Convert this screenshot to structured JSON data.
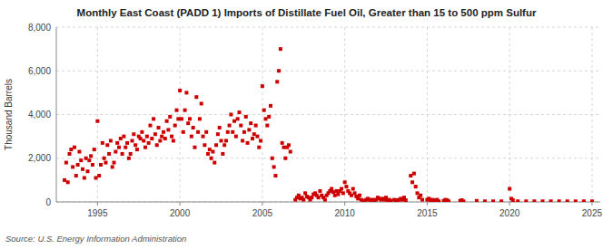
{
  "chart_data": {
    "type": "scatter",
    "title": "Monthly East Coast (PADD 1) Imports of Distillate Fuel Oil, Greater than 15 to 500 ppm Sulfur",
    "ylabel": "Thousand Barrels",
    "annotations": [
      "Source: U.S. Energy Information Administration"
    ],
    "color": "#cc0000",
    "marker": "square",
    "grid": true,
    "xlim": [
      1992.5,
      2025.5
    ],
    "ylim": [
      0,
      8000
    ],
    "xticks": [
      1995,
      2000,
      2005,
      2010,
      2015,
      2020,
      2025
    ],
    "yticks": [
      0,
      {
        "value": 2000,
        "label": "2,000"
      },
      {
        "value": 4000,
        "label": "4,000"
      },
      {
        "value": 6000,
        "label": "6,000"
      },
      {
        "value": 8000,
        "label": "8,000"
      }
    ],
    "x": [
      1993.0,
      1993.1,
      1993.2,
      1993.3,
      1993.4,
      1993.5,
      1993.6,
      1993.7,
      1993.8,
      1993.9,
      1994.0,
      1994.1,
      1994.2,
      1994.3,
      1994.4,
      1994.5,
      1994.6,
      1994.7,
      1994.8,
      1994.9,
      1995.0,
      1995.1,
      1995.2,
      1995.3,
      1995.4,
      1995.5,
      1995.6,
      1995.7,
      1995.8,
      1995.9,
      1996.0,
      1996.1,
      1996.2,
      1996.3,
      1996.4,
      1996.5,
      1996.6,
      1996.7,
      1996.8,
      1996.9,
      1997.0,
      1997.1,
      1997.2,
      1997.3,
      1997.4,
      1997.5,
      1997.6,
      1997.7,
      1997.8,
      1997.9,
      1998.0,
      1998.1,
      1998.2,
      1998.3,
      1998.4,
      1998.5,
      1998.6,
      1998.7,
      1998.8,
      1998.9,
      1999.0,
      1999.1,
      1999.2,
      1999.3,
      1999.4,
      1999.5,
      1999.6,
      1999.7,
      1999.8,
      1999.9,
      2000.0,
      2000.1,
      2000.2,
      2000.3,
      2000.4,
      2000.5,
      2000.6,
      2000.7,
      2000.8,
      2000.9,
      2001.0,
      2001.1,
      2001.2,
      2001.3,
      2001.4,
      2001.5,
      2001.6,
      2001.7,
      2001.8,
      2001.9,
      2002.0,
      2002.1,
      2002.2,
      2002.3,
      2002.4,
      2002.5,
      2002.6,
      2002.7,
      2002.8,
      2002.9,
      2003.0,
      2003.1,
      2003.2,
      2003.3,
      2003.4,
      2003.5,
      2003.6,
      2003.7,
      2003.8,
      2003.9,
      2004.0,
      2004.1,
      2004.2,
      2004.3,
      2004.4,
      2004.5,
      2004.6,
      2004.7,
      2004.8,
      2004.9,
      2005.0,
      2005.1,
      2005.2,
      2005.3,
      2005.4,
      2005.5,
      2005.6,
      2005.7,
      2005.8,
      2005.9,
      2006.0,
      2006.1,
      2006.2,
      2006.3,
      2006.4,
      2006.5,
      2006.6,
      2006.7,
      2007.0,
      2007.1,
      2007.2,
      2007.3,
      2007.4,
      2007.5,
      2007.6,
      2007.7,
      2007.8,
      2007.9,
      2008.0,
      2008.1,
      2008.2,
      2008.3,
      2008.4,
      2008.5,
      2008.6,
      2008.7,
      2008.8,
      2008.9,
      2009.0,
      2009.1,
      2009.2,
      2009.3,
      2009.4,
      2009.5,
      2009.6,
      2009.7,
      2009.8,
      2009.9,
      2010.0,
      2010.1,
      2010.2,
      2010.3,
      2010.4,
      2010.5,
      2010.6,
      2010.7,
      2010.8,
      2010.9,
      2011.0,
      2011.1,
      2011.2,
      2011.3,
      2011.4,
      2011.5,
      2011.6,
      2011.7,
      2011.8,
      2011.9,
      2012.0,
      2012.1,
      2012.2,
      2012.3,
      2012.4,
      2012.5,
      2012.6,
      2012.7,
      2012.8,
      2013.0,
      2013.1,
      2013.2,
      2013.3,
      2013.4,
      2013.5,
      2013.6,
      2013.7,
      2014.0,
      2014.1,
      2014.2,
      2014.3,
      2014.4,
      2014.5,
      2014.6,
      2014.7,
      2015.0,
      2015.1,
      2015.2,
      2015.3,
      2015.4,
      2015.5,
      2015.6,
      2015.7,
      2016.0,
      2016.1,
      2016.2,
      2016.3,
      2017.0,
      2017.1,
      2017.2,
      2018.0,
      2018.5,
      2019.0,
      2019.5,
      2020.0,
      2020.1,
      2020.2,
      2020.5,
      2021.0,
      2021.5,
      2022.0,
      2022.5,
      2023.0,
      2023.5,
      2024.0,
      2024.5,
      2025.0
    ],
    "values": [
      1000,
      1800,
      900,
      2200,
      2400,
      1600,
      2500,
      1200,
      1700,
      2300,
      1900,
      1500,
      1100,
      2000,
      1400,
      1900,
      2100,
      1700,
      2400,
      1100,
      3700,
      1200,
      1700,
      2700,
      2000,
      1800,
      2600,
      2200,
      2800,
      1600,
      1800,
      2300,
      2700,
      2500,
      2900,
      2200,
      3000,
      2500,
      2700,
      2000,
      2200,
      2800,
      3100,
      2600,
      2400,
      3000,
      2900,
      3200,
      2800,
      2500,
      3000,
      2700,
      3500,
      2900,
      3800,
      3100,
      2600,
      3400,
      2800,
      3000,
      3200,
      2900,
      3700,
      3300,
      3900,
      3000,
      2800,
      3500,
      4200,
      3800,
      5100,
      3800,
      3200,
      4200,
      5000,
      3600,
      3800,
      3000,
      3400,
      2500,
      4800,
      3200,
      3800,
      4500,
      3000,
      2600,
      3200,
      2200,
      2400,
      2000,
      2300,
      1800,
      2600,
      3100,
      3400,
      2800,
      2200,
      2600,
      2800,
      3200,
      3500,
      4000,
      3200,
      3700,
      3000,
      3800,
      4100,
      3500,
      2800,
      3200,
      3900,
      2700,
      3300,
      3600,
      2900,
      3100,
      3500,
      3000,
      2500,
      2800,
      5300,
      4200,
      3800,
      3500,
      3900,
      4400,
      2000,
      1600,
      1200,
      5500,
      6000,
      7000,
      2700,
      2500,
      2000,
      2500,
      2600,
      2300,
      100,
      200,
      300,
      150,
      200,
      100,
      400,
      250,
      200,
      100,
      200,
      350,
      400,
      300,
      200,
      500,
      300,
      200,
      100,
      300,
      400,
      500,
      600,
      450,
      300,
      500,
      350,
      500,
      600,
      400,
      900,
      700,
      500,
      400,
      300,
      600,
      400,
      250,
      150,
      300,
      100,
      50,
      50,
      100,
      150,
      100,
      50,
      100,
      50,
      100,
      200,
      150,
      100,
      150,
      100,
      200,
      50,
      100,
      50,
      100,
      80,
      50,
      100,
      150,
      100,
      200,
      80,
      1200,
      900,
      1300,
      700,
      400,
      200,
      300,
      100,
      100,
      150,
      50,
      100,
      80,
      50,
      100,
      30,
      50,
      100,
      80,
      30,
      50,
      80,
      30,
      50,
      30,
      30,
      30,
      600,
      150,
      80,
      30,
      30,
      30,
      30,
      30,
      30,
      30,
      30,
      30,
      30
    ]
  }
}
